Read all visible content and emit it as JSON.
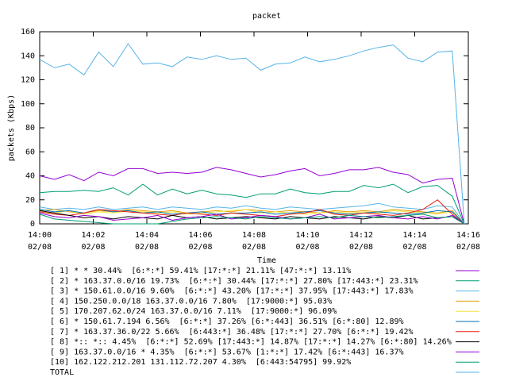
{
  "chart_data": {
    "type": "line",
    "title": "packet",
    "x_label": "Time",
    "y_label": "packets (Kbps)",
    "xlim": [
      0,
      16
    ],
    "ylim": [
      0,
      160
    ],
    "xticks": [
      {
        "value": 0,
        "label": [
          "14:00",
          "02/08"
        ]
      },
      {
        "value": 2,
        "label": [
          "14:02",
          "02/08"
        ]
      },
      {
        "value": 4,
        "label": [
          "14:04",
          "02/08"
        ]
      },
      {
        "value": 6,
        "label": [
          "14:06",
          "02/08"
        ]
      },
      {
        "value": 8,
        "label": [
          "14:08",
          "02/08"
        ]
      },
      {
        "value": 10,
        "label": [
          "14:10",
          "02/08"
        ]
      },
      {
        "value": 12,
        "label": [
          "14:12",
          "02/08"
        ]
      },
      {
        "value": 14,
        "label": [
          "14:14",
          "02/08"
        ]
      },
      {
        "value": 16,
        "label": [
          "14:16",
          "02/08"
        ]
      }
    ],
    "yticks": [
      0,
      20,
      40,
      60,
      80,
      100,
      120,
      140,
      160
    ],
    "x": [
      0,
      0.55,
      1.1,
      1.65,
      2.2,
      2.75,
      3.3,
      3.85,
      4.4,
      4.95,
      5.5,
      6.05,
      6.6,
      7.15,
      7.7,
      8.25,
      8.8,
      9.35,
      9.9,
      10.45,
      11,
      11.55,
      12.1,
      12.65,
      13.2,
      13.75,
      14.3,
      14.85,
      15.4,
      15.85
    ],
    "series": [
      {
        "name": "[ 1] * * 30.44%  [6:*:*] 59.41% [17:*:*] 21.11% [47:*:*] 13.11%",
        "color": "#9400d3",
        "values": [
          40,
          37,
          41,
          36,
          43,
          40,
          46,
          46,
          42,
          43,
          42,
          43,
          47,
          45,
          42,
          39,
          41,
          44,
          46,
          40,
          42,
          45,
          45,
          47,
          43,
          41,
          34,
          37,
          38,
          0
        ]
      },
      {
        "name": "[ 2] * 163.37.0.0/16 19.73%  [6:*:*] 30.44% [17:*:*] 27.80% [17:443:*] 23.31%",
        "color": "#009e73",
        "values": [
          26,
          27,
          27,
          28,
          27,
          30,
          24,
          33,
          24,
          29,
          25,
          28,
          25,
          24,
          22,
          25,
          25,
          29,
          26,
          25,
          27,
          27,
          32,
          30,
          33,
          26,
          31,
          32,
          23,
          0
        ]
      },
      {
        "name": "[ 3] * 150.61.0.0/16 9.60%  [6:*:*] 43.20% [17:*:*] 37.95% [17:443:*] 17.83%",
        "color": "#56b4e9",
        "values": [
          14,
          12,
          13,
          12,
          14,
          12,
          13,
          14,
          12,
          14,
          13,
          12,
          14,
          13,
          15,
          13,
          12,
          14,
          13,
          12,
          13,
          14,
          15,
          17,
          14,
          13,
          12,
          15,
          14,
          0
        ]
      },
      {
        "name": "[ 4] 150.250.0.0/18 163.37.0.0/16 7.80%  [17:9000:*] 95.03%",
        "color": "#e69f00",
        "values": [
          11,
          12,
          10,
          9,
          11,
          10,
          12,
          11,
          10,
          11,
          9,
          10,
          11,
          10,
          12,
          11,
          10,
          11,
          10,
          9,
          11,
          10,
          11,
          10,
          12,
          11,
          10,
          9,
          11,
          0
        ]
      },
      {
        "name": "[ 5] 170.207.62.0/24 163.37.0.0/16 7.11%  [17:9000:*] 96.09%",
        "color": "#f0e442",
        "values": [
          10,
          9,
          11,
          8,
          10,
          9,
          11,
          10,
          9,
          10,
          8,
          9,
          10,
          11,
          12,
          9,
          10,
          9,
          8,
          9,
          10,
          9,
          10,
          9,
          11,
          10,
          9,
          8,
          10,
          0
        ]
      },
      {
        "name": "[ 6] * 150.61.7.194 6.56%  [6:*:*] 37.26% [6:*:443] 36.51% [6:*:80] 12.89%",
        "color": "#0072b2",
        "values": [
          12,
          10,
          11,
          9,
          12,
          10,
          11,
          9,
          10,
          8,
          9,
          10,
          8,
          9,
          9,
          10,
          8,
          9,
          10,
          11,
          9,
          8,
          9,
          10,
          9,
          8,
          9,
          11,
          10,
          0
        ]
      },
      {
        "name": "[ 7] * 163.37.36.0/22 5.66%  [6:443:*] 36.48% [17:*:*] 27.70% [6:*:*] 19.42%",
        "color": "#e51e10",
        "values": [
          10,
          8,
          7,
          9,
          12,
          11,
          10,
          9,
          8,
          7,
          9,
          8,
          7,
          9,
          8,
          7,
          6,
          8,
          9,
          12,
          8,
          7,
          9,
          8,
          7,
          9,
          12,
          20,
          8,
          0
        ]
      },
      {
        "name": "[ 8] *:: *:: 4.45%  [6:*:*] 52.69% [17:443:*] 14.87% [17:*:*] 14.27% [6:*:80] 14.26%",
        "color": "#000000",
        "values": [
          11,
          9,
          7,
          5,
          6,
          4,
          6,
          5,
          4,
          7,
          5,
          6,
          4,
          5,
          6,
          5,
          4,
          6,
          5,
          4,
          6,
          5,
          4,
          6,
          5,
          7,
          4,
          5,
          6,
          0
        ]
      },
      {
        "name": "[ 9] 163.37.0.0/16 * 4.35%  [6:*:*] 53.67% [1:*:*] 17.42% [6:*:443] 16.37%",
        "color": "#9400d3",
        "values": [
          9,
          6,
          5,
          7,
          6,
          3,
          4,
          5,
          7,
          3,
          5,
          6,
          8,
          4,
          5,
          7,
          6,
          4,
          5,
          8,
          4,
          5,
          6,
          7,
          5,
          4,
          6,
          4,
          7,
          0
        ]
      },
      {
        "name": "[10] 162.122.212.201 131.112.72.207 4.30%  [6:443:54795] 99.92%",
        "color": "#009e73",
        "values": [
          8,
          4,
          3,
          2,
          1,
          0,
          0,
          0,
          0,
          2,
          4,
          5,
          6,
          5,
          4,
          6,
          5,
          4,
          5,
          6,
          5,
          7,
          6,
          5,
          6,
          7,
          8,
          5,
          6,
          0
        ]
      },
      {
        "name": "TOTAL",
        "color": "#56b4e9",
        "values": [
          137,
          130,
          133,
          124,
          143,
          131,
          150,
          133,
          134,
          131,
          139,
          137,
          140,
          137,
          138,
          128,
          133,
          134,
          139,
          135,
          137,
          140,
          144,
          147,
          149,
          138,
          135,
          143,
          144,
          0
        ]
      }
    ]
  }
}
